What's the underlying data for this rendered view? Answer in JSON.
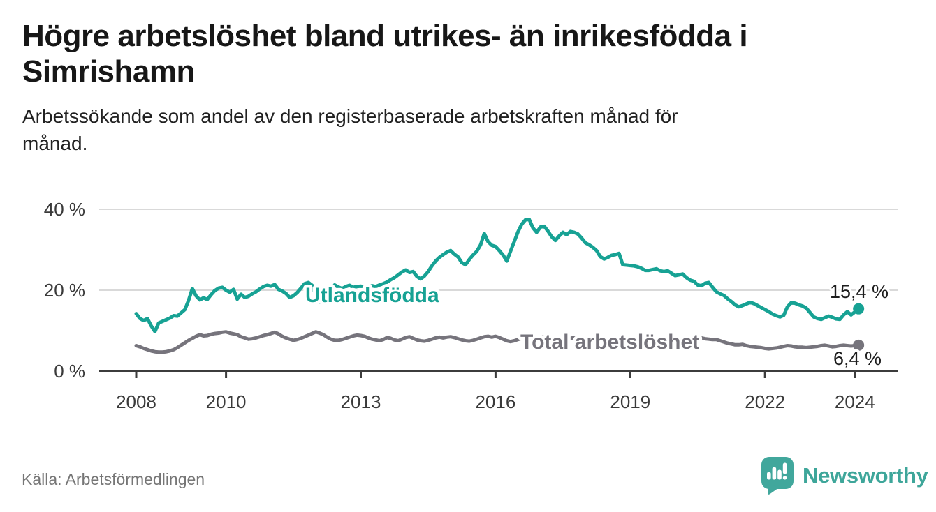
{
  "header": {
    "title_lines": [
      "Högre arbetslöshet bland utrikes- än inrikesfödda i",
      "Simrishamn"
    ],
    "subtitle_lines": [
      "Arbetssökande som andel av den registerbaserade arbetskraften månad för",
      "månad."
    ]
  },
  "chart_data": {
    "type": "line",
    "unit": "%",
    "frequency": "monthly",
    "start": "2008-01",
    "end": "2024-02",
    "ylim": [
      0,
      40
    ],
    "grid": "horizontal-only",
    "legend_position": "inline-labels",
    "y_ticks": [
      {
        "value": 0,
        "label": "0 %"
      },
      {
        "value": 20,
        "label": "20 %"
      },
      {
        "value": 40,
        "label": "40 %"
      }
    ],
    "x_ticks": [
      {
        "year": 2008,
        "label": "2008"
      },
      {
        "year": 2010,
        "label": "2010"
      },
      {
        "year": 2013,
        "label": "2013"
      },
      {
        "year": 2016,
        "label": "2016"
      },
      {
        "year": 2019,
        "label": "2019"
      },
      {
        "year": 2022,
        "label": "2022"
      },
      {
        "year": 2024,
        "label": "2024"
      }
    ],
    "series": [
      {
        "name": "Utlandsfödda",
        "color": "#17a294",
        "end_label": "15,4 %",
        "last_value": 15.4,
        "values": [
          14.2,
          13.0,
          12.5,
          13.0,
          11.2,
          9.8,
          11.9,
          12.3,
          12.7,
          13.1,
          13.7,
          13.6,
          14.4,
          15.2,
          17.5,
          20.4,
          18.6,
          17.6,
          18.1,
          17.7,
          18.9,
          19.9,
          20.5,
          20.7,
          20.0,
          19.5,
          20.2,
          17.8,
          19.0,
          18.2,
          18.5,
          19.1,
          19.6,
          20.3,
          20.9,
          21.2,
          21.0,
          21.4,
          20.2,
          19.8,
          19.2,
          18.2,
          18.6,
          19.4,
          20.5,
          21.6,
          21.9,
          21.2,
          18.8,
          17.1,
          18.0,
          19.3,
          20.5,
          21.3,
          20.8,
          20.4,
          20.9,
          21.2,
          20.7,
          20.9,
          21.0,
          20.6,
          20.8,
          21.1,
          20.9,
          21.3,
          21.6,
          22.0,
          22.6,
          23.1,
          23.8,
          24.5,
          25.0,
          24.4,
          24.6,
          23.4,
          22.8,
          23.5,
          24.6,
          26.0,
          27.2,
          28.1,
          28.8,
          29.4,
          29.8,
          28.9,
          28.2,
          26.8,
          26.3,
          27.6,
          28.7,
          29.6,
          31.2,
          34.0,
          32.0,
          31.1,
          30.8,
          29.8,
          28.7,
          27.2,
          29.6,
          32.0,
          34.4,
          36.3,
          37.4,
          37.5,
          35.4,
          34.3,
          35.6,
          35.8,
          34.6,
          33.2,
          32.3,
          33.4,
          34.3,
          33.7,
          34.5,
          34.3,
          33.9,
          32.9,
          31.7,
          31.2,
          30.6,
          29.8,
          28.3,
          27.7,
          28.1,
          28.6,
          28.8,
          29.1,
          26.3,
          26.2,
          26.1,
          26.0,
          25.8,
          25.4,
          24.9,
          24.9,
          25.1,
          25.3,
          24.8,
          24.6,
          24.8,
          24.2,
          23.6,
          23.8,
          24.0,
          23.1,
          22.5,
          22.2,
          21.3,
          21.1,
          21.7,
          21.9,
          20.7,
          19.6,
          19.1,
          18.7,
          17.9,
          17.2,
          16.4,
          15.9,
          16.2,
          16.6,
          17.0,
          16.7,
          16.2,
          15.7,
          15.2,
          14.7,
          14.1,
          13.7,
          13.4,
          13.8,
          15.9,
          16.9,
          16.8,
          16.4,
          16.1,
          15.6,
          14.5,
          13.4,
          13.0,
          12.8,
          13.2,
          13.6,
          13.3,
          12.9,
          12.8,
          13.9,
          14.7,
          13.9,
          14.6,
          15.4
        ]
      },
      {
        "name": "Total arbetslöshet",
        "color": "#76747c",
        "end_label": "6,4 %",
        "last_value": 6.4,
        "values": [
          6.3,
          6.0,
          5.6,
          5.3,
          5.0,
          4.8,
          4.7,
          4.7,
          4.8,
          5.0,
          5.3,
          5.8,
          6.4,
          7.0,
          7.6,
          8.1,
          8.6,
          9.0,
          8.7,
          8.8,
          9.1,
          9.3,
          9.4,
          9.6,
          9.7,
          9.4,
          9.2,
          9.0,
          8.5,
          8.2,
          7.9,
          8.0,
          8.2,
          8.5,
          8.8,
          9.0,
          9.3,
          9.6,
          9.2,
          8.6,
          8.2,
          7.9,
          7.6,
          7.8,
          8.1,
          8.5,
          8.9,
          9.3,
          9.7,
          9.4,
          9.0,
          8.4,
          7.9,
          7.6,
          7.6,
          7.8,
          8.1,
          8.4,
          8.7,
          8.9,
          8.8,
          8.6,
          8.2,
          7.9,
          7.7,
          7.5,
          7.8,
          8.3,
          8.1,
          7.7,
          7.5,
          7.9,
          8.3,
          8.5,
          8.1,
          7.7,
          7.5,
          7.4,
          7.6,
          7.9,
          8.2,
          8.4,
          8.2,
          8.4,
          8.5,
          8.3,
          8.0,
          7.7,
          7.5,
          7.4,
          7.6,
          7.9,
          8.2,
          8.5,
          8.6,
          8.4,
          8.6,
          8.3,
          7.9,
          7.5,
          7.3,
          7.5,
          7.8,
          8.1,
          8.4,
          8.6,
          8.5,
          8.4,
          8.3,
          8.5,
          8.2,
          7.9,
          7.6,
          7.4,
          7.6,
          7.9,
          8.1,
          8.3,
          8.2,
          8.0,
          8.2,
          8.4,
          8.1,
          7.8,
          7.5,
          7.3,
          7.5,
          7.7,
          7.9,
          7.7,
          7.6,
          7.8,
          8.0,
          8.1,
          7.9,
          7.6,
          7.4,
          7.3,
          7.5,
          7.4,
          7.3,
          7.4,
          7.6,
          7.7,
          7.8,
          7.7,
          7.9,
          8.1,
          8.3,
          8.4,
          8.3,
          8.2,
          8.0,
          7.9,
          7.8,
          7.8,
          7.5,
          7.2,
          6.9,
          6.7,
          6.5,
          6.5,
          6.6,
          6.3,
          6.1,
          6.0,
          5.9,
          5.8,
          5.6,
          5.5,
          5.6,
          5.7,
          5.9,
          6.1,
          6.3,
          6.2,
          6.0,
          5.9,
          5.9,
          5.8,
          5.9,
          6.0,
          6.1,
          6.3,
          6.4,
          6.2,
          6.0,
          6.1,
          6.3,
          6.4,
          6.3,
          6.2,
          6.3,
          6.4
        ]
      }
    ]
  },
  "footer": {
    "source": "Källa: Arbetsförmedlingen",
    "logo_text": "Newsworthy",
    "logo_color": "#3ea69a"
  }
}
